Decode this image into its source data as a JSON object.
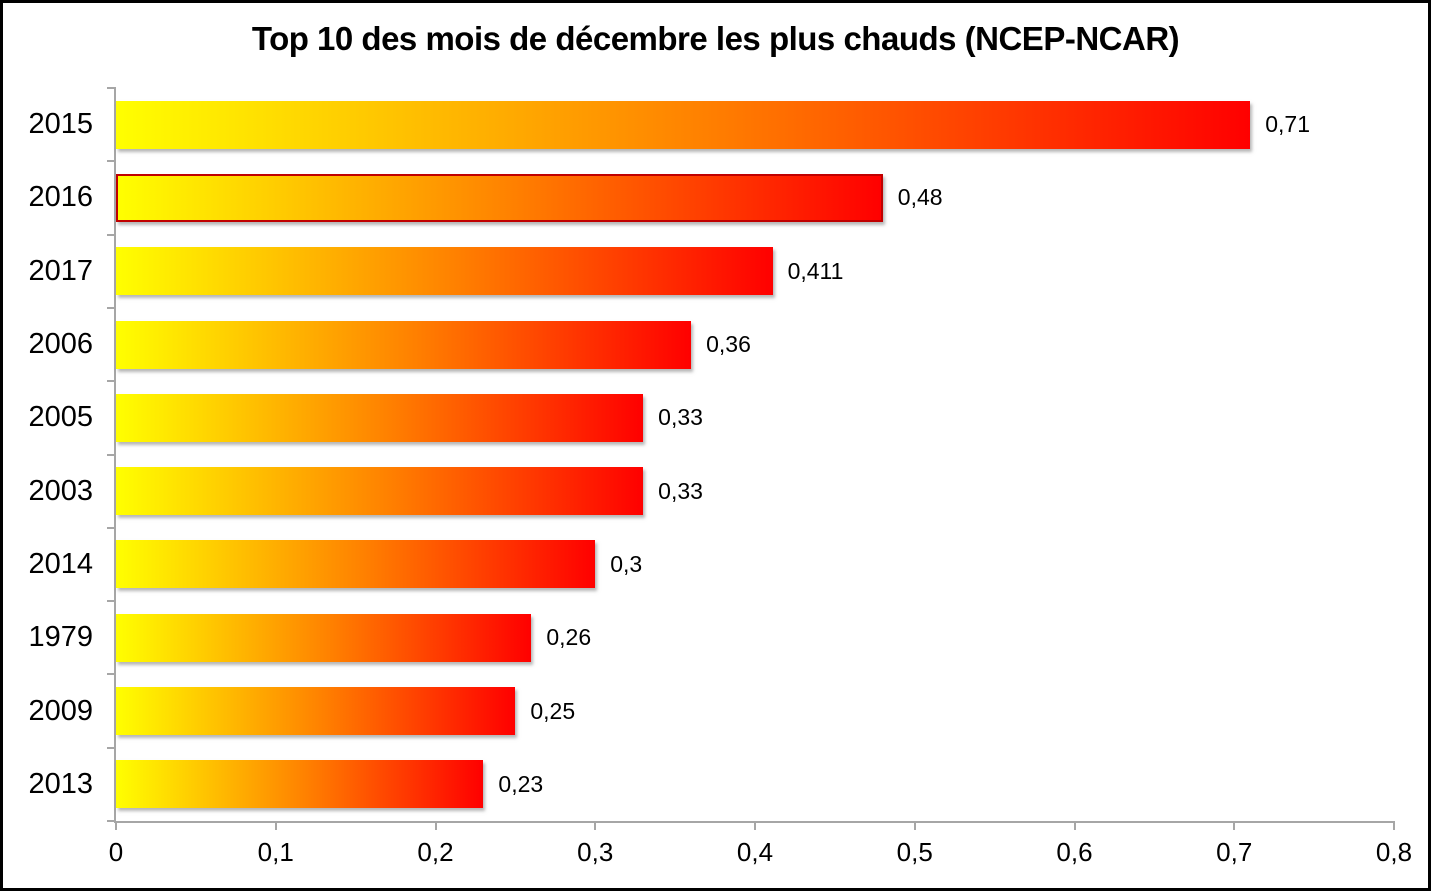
{
  "title": "Top 10 des mois de décembre les plus chauds (NCEP-NCAR)",
  "chart_data": {
    "type": "bar",
    "orientation": "horizontal",
    "title": "Top 10 des mois de décembre les plus chauds (NCEP-NCAR)",
    "xlabel": "",
    "ylabel": "",
    "categories": [
      "2015",
      "2016",
      "2017",
      "2006",
      "2005",
      "2003",
      "2014",
      "1979",
      "2009",
      "2013"
    ],
    "values": [
      0.71,
      0.48,
      0.411,
      0.36,
      0.33,
      0.33,
      0.3,
      0.26,
      0.25,
      0.23
    ],
    "value_labels": [
      "0,71",
      "0,48",
      "0,411",
      "0,36",
      "0,33",
      "0,33",
      "0,3",
      "0,26",
      "0,25",
      "0,23"
    ],
    "highlighted_category": "2016",
    "xlim": [
      0,
      0.8
    ],
    "x_ticks": [
      "0",
      "0,1",
      "0,2",
      "0,3",
      "0,4",
      "0,5",
      "0,6",
      "0,7",
      "0,8"
    ],
    "grid": false,
    "legend": false,
    "colors": {
      "bar_gradient_start": "#ffff00",
      "bar_gradient_end": "#ff0000",
      "highlight_border": "#c00000",
      "axis": "#a6a6a6",
      "text": "#000000",
      "background": "#ffffff",
      "frame_border": "#000000"
    }
  }
}
